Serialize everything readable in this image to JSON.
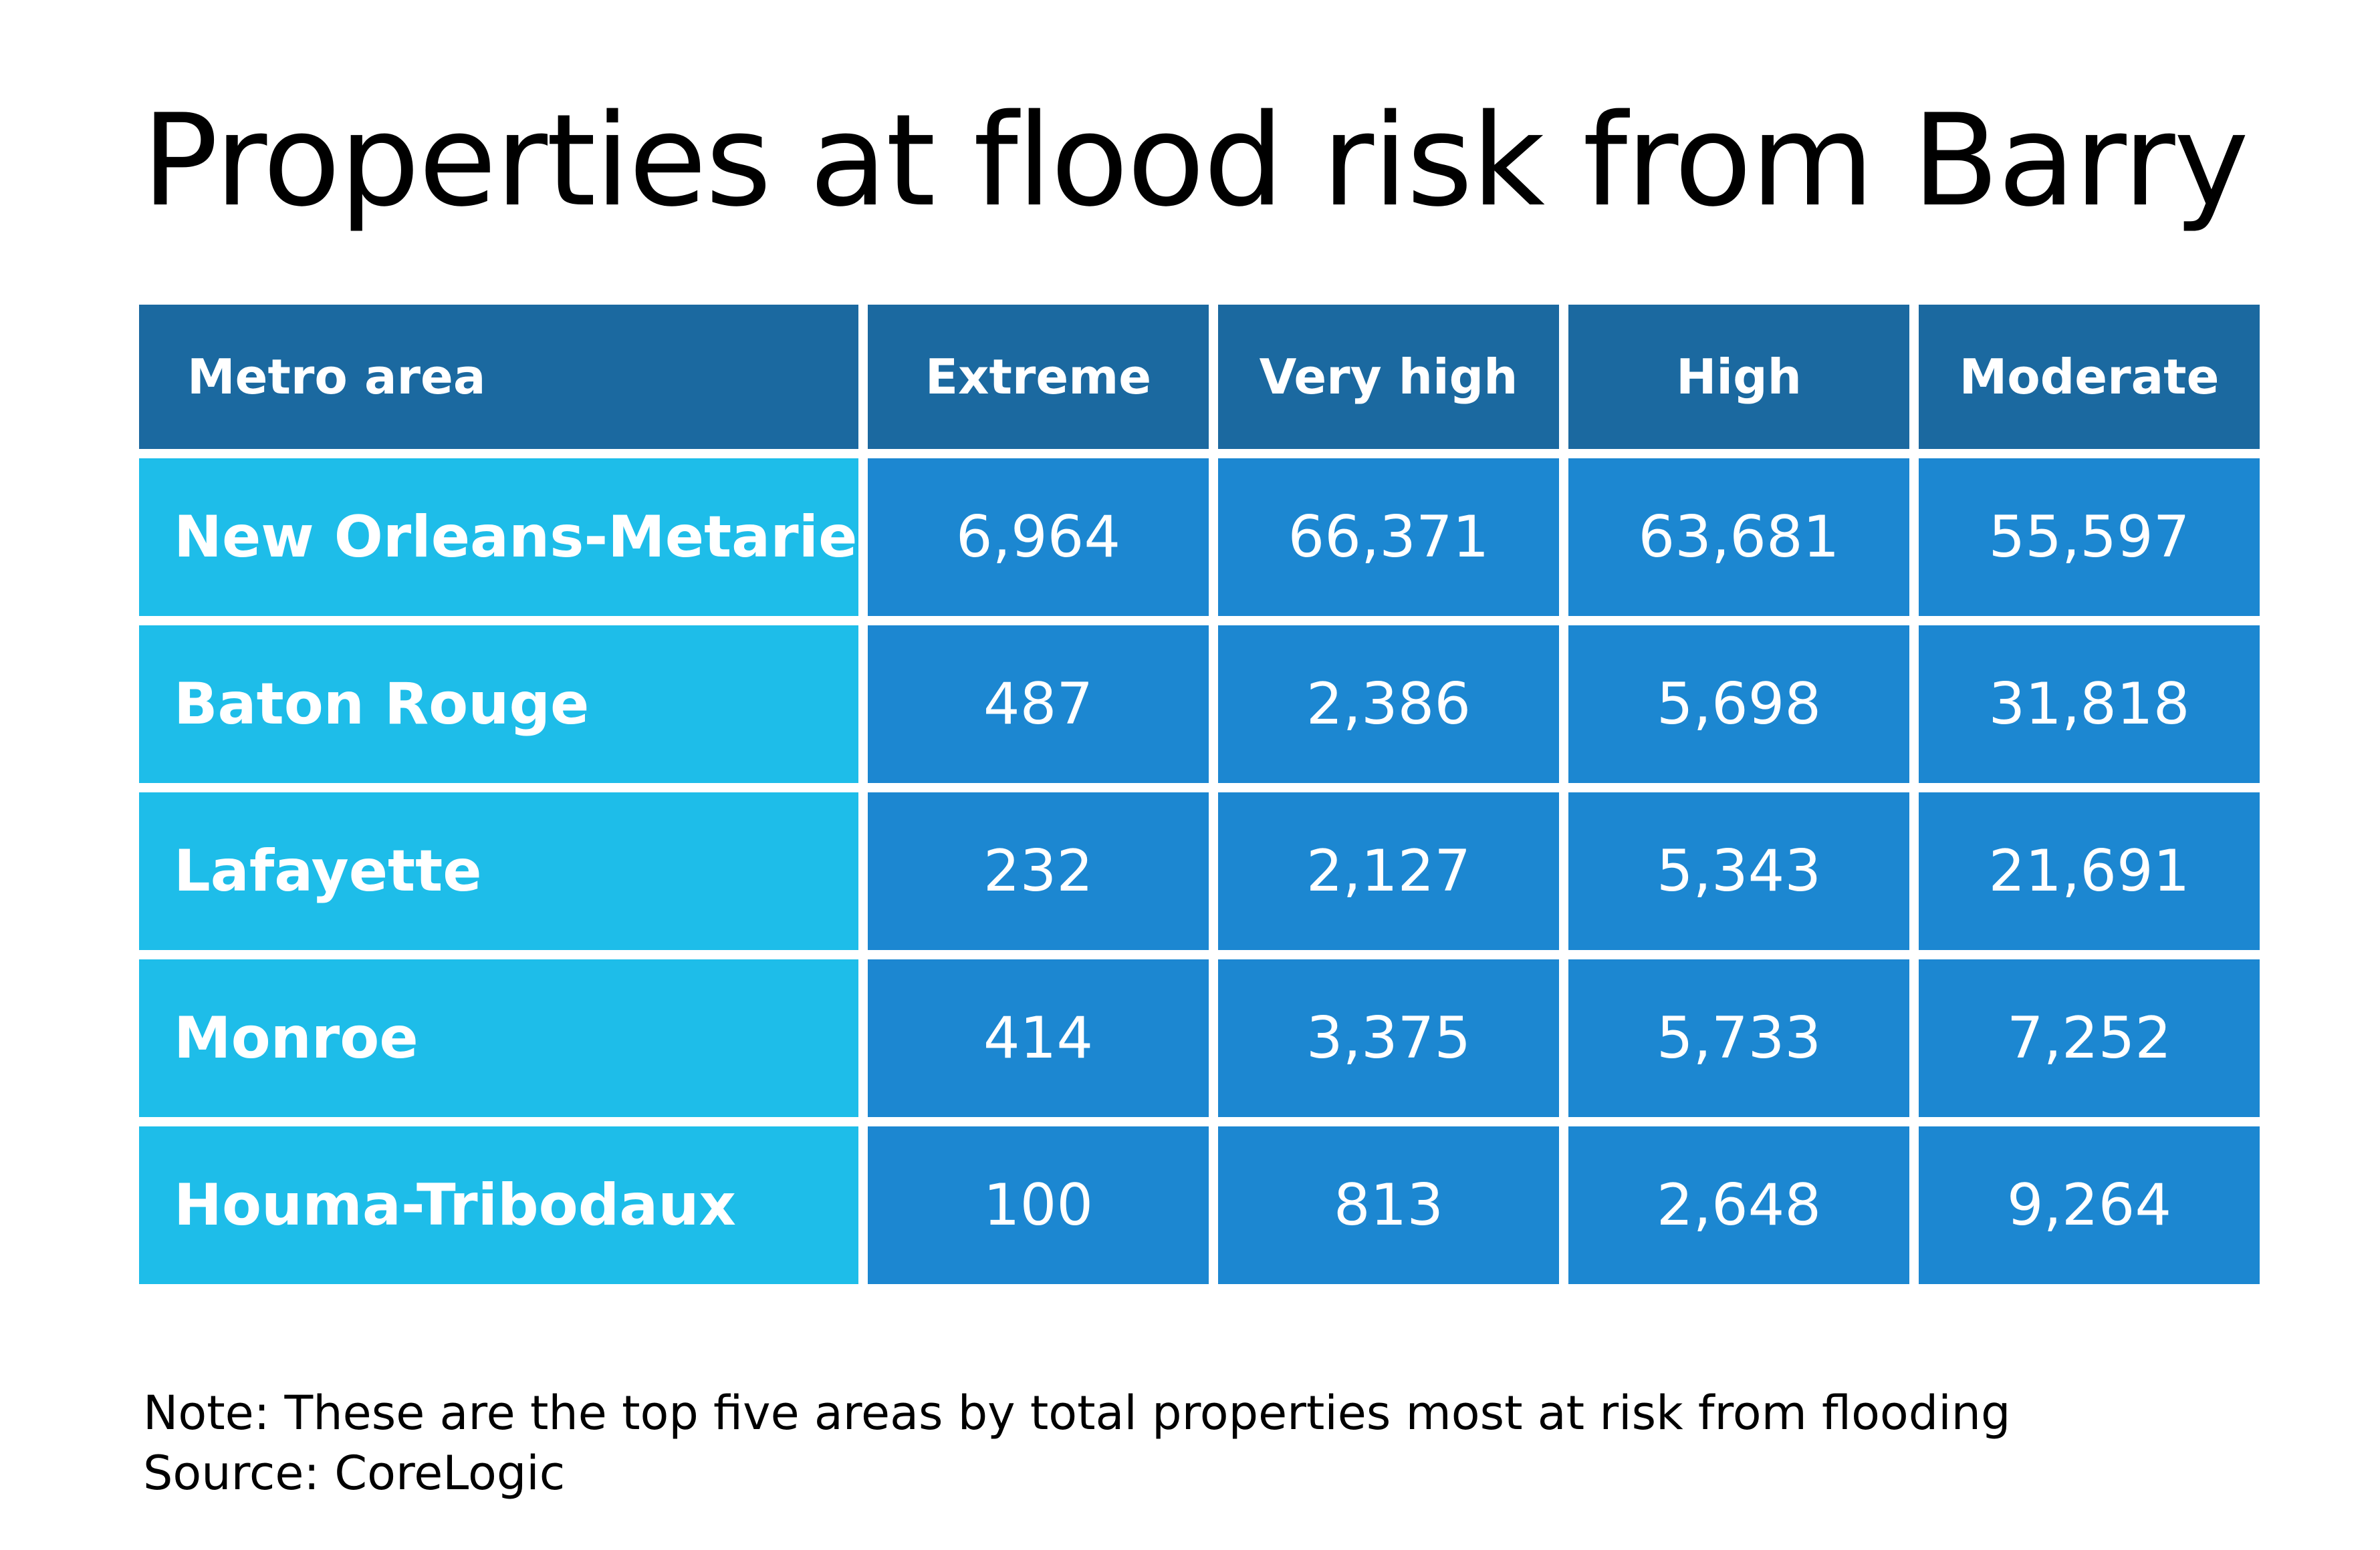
{
  "title": "Properties at flood risk from Barry",
  "table": {
    "headers": [
      "Metro area",
      "Extreme",
      "Very high",
      "High",
      "Moderate"
    ],
    "rows": [
      [
        "New Orleans-Metarie",
        "6,964",
        "66,371",
        "63,681",
        "55,597"
      ],
      [
        "Baton Rouge",
        "487",
        "2,386",
        "5,698",
        "31,818"
      ],
      [
        "Lafayette",
        "232",
        "2,127",
        "5,343",
        "21,691"
      ],
      [
        "Monroe",
        "414",
        "3,375",
        "5,733",
        "7,252"
      ],
      [
        "Houma-Tribodaux",
        "100",
        "813",
        "2,648",
        "9,264"
      ]
    ]
  },
  "note": "Note: These are the top five areas by total properties most at risk from flooding",
  "source": "Source: CoreLogic",
  "colors": {
    "header": "#1B69A0",
    "metro_cell": "#1EBDE9",
    "value_cell": "#1C87D1"
  }
}
